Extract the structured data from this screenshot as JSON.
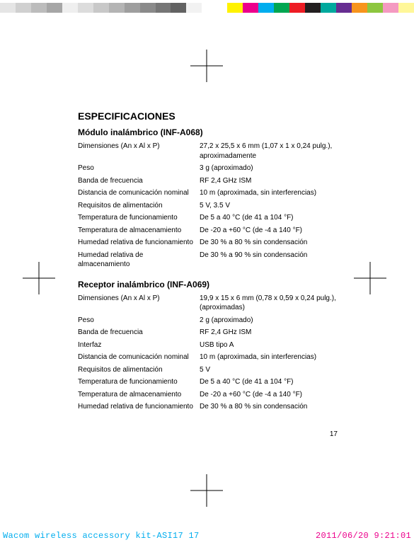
{
  "colorbar": {
    "grays": [
      "#e5e5e5",
      "#d0d0d0",
      "#bcbcbc",
      "#a6a6a6",
      "#efefef",
      "#dcdcdc",
      "#c8c8c8",
      "#b4b4b4",
      "#9e9e9e",
      "#8a8a8a",
      "#767676",
      "#626262",
      "#f2f2f2"
    ],
    "gray_swatch_width": 22,
    "gap_width": 36,
    "colors": [
      "#fff200",
      "#ec008c",
      "#00adee",
      "#00a651",
      "#ed1c24",
      "#231f20",
      "#00a99d",
      "#662d91",
      "#f7941d",
      "#8dc63f",
      "#f49ac1",
      "#fff799"
    ],
    "color_swatch_width": 22
  },
  "registration_marks": {
    "size": 46,
    "stroke": "#000000"
  },
  "title": "ESPECIFICACIONES",
  "sections": [
    {
      "heading": "Módulo inalámbrico (INF-A068)",
      "rows": [
        {
          "label": "Dimensiones (An x Al x P)",
          "value": "27,2 x 25,5 x 6 mm (1,07 x 1 x 0,24 pulg.), aproximadamente"
        },
        {
          "label": "Peso",
          "value": "3 g (aproximado)"
        },
        {
          "label": "Banda de frecuencia",
          "value": "RF 2,4 GHz ISM"
        },
        {
          "label": "Distancia de comunicación nominal",
          "value": "10 m (aproximada, sin interferencias)"
        },
        {
          "label": "Requisitos de alimentación",
          "value": "5 V, 3.5 V"
        },
        {
          "label": "Temperatura de funcionamiento",
          "value": "De 5 a 40 °C (de 41 a 104 °F)"
        },
        {
          "label": "Temperatura de almacenamiento",
          "value": "De -20 a +60 °C (de -4 a 140 °F)"
        },
        {
          "label": "Humedad relativa de funcionamiento",
          "value": "De 30 % a 80 % sin condensación"
        },
        {
          "label": "Humedad relativa de almacenamiento",
          "value": "De 30 % a 90 % sin condensación"
        }
      ]
    },
    {
      "heading": "Receptor inalámbrico (INF-A069)",
      "rows": [
        {
          "label": "Dimensiones (An x Al x P)",
          "value": "19,9 x 15 x 6 mm (0,78 x 0,59 x 0,24 pulg.), (aproximadas)"
        },
        {
          "label": "Peso",
          "value": "2 g (aproximado)"
        },
        {
          "label": "Banda de frecuencia",
          "value": "RF 2,4 GHz ISM"
        },
        {
          "label": "Interfaz",
          "value": "USB tipo A"
        },
        {
          "label": "Distancia de comunicación nominal",
          "value": "10 m (aproximada, sin interferencias)"
        },
        {
          "label": "Requisitos de alimentación",
          "value": "5 V"
        },
        {
          "label": "Temperatura de funcionamiento",
          "value": "De 5 a 40 °C (de 41 a 104 °F)"
        },
        {
          "label": "Temperatura de almacenamiento",
          "value": "De -20 a +60 °C (de -4 a 140 °F)"
        },
        {
          "label": "Humedad relativa de funcionamiento",
          "value": "De 30 % a 80 % sin condensación"
        }
      ]
    }
  ],
  "page_number": "17",
  "slug": {
    "left": "Wacom wireless accessory kit-ASI17   17",
    "right": "2011/06/20   9:21:01"
  }
}
